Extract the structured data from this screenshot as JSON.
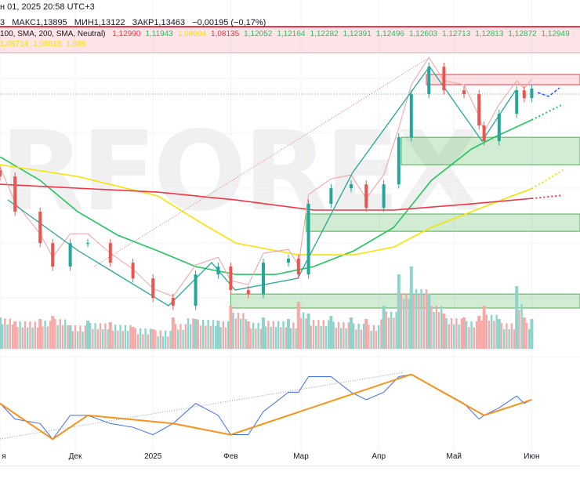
{
  "header": {
    "date_text": "н 01, 2025 20:58 UTC+3",
    "ohlc": {
      "open_fragment": "3",
      "high": "МАКС1,13895",
      "low": "МИН1,13122",
      "close": "ЗАКР1,13463",
      "change": "−0,00195 (−0,17%)"
    }
  },
  "legend": {
    "params": "100, SMA, 200, SMA, Neutral)",
    "values": [
      {
        "text": "1,12990",
        "color": "#f23645"
      },
      {
        "text": "1,11943",
        "color": "#22c55e"
      },
      {
        "text": "1,08604",
        "color": "#f5e300"
      },
      {
        "text": "1,08135",
        "color": "#f23645"
      },
      {
        "text": "1,12052",
        "color": "#22c55e"
      },
      {
        "text": "1,12164",
        "color": "#22c55e"
      },
      {
        "text": "1,12282",
        "color": "#22c55e"
      },
      {
        "text": "1,12391",
        "color": "#22c55e"
      },
      {
        "text": "1,12496",
        "color": "#22c55e"
      },
      {
        "text": "1,12603",
        "color": "#22c55e"
      },
      {
        "text": "1,12713",
        "color": "#22c55e"
      },
      {
        "text": "1,12813",
        "color": "#22c55e"
      },
      {
        "text": "1,12872",
        "color": "#22c55e"
      },
      {
        "text": "1,12949",
        "color": "#22c55e"
      },
      {
        "text": "1,08714",
        "color": "#f5e300"
      },
      {
        "text": "1,08818",
        "color": "#f5e300"
      },
      {
        "text": "1,089",
        "color": "#f5e300"
      }
    ]
  },
  "watermark": "RFOREX",
  "colors": {
    "up": "#26a69a",
    "down": "#ef5350",
    "vol_up": "#8fd3cc",
    "vol_down": "#f7a9a7",
    "sma_fast": "#22c55e",
    "sma_mid": "#f5e300",
    "sma_slow": "#f23645",
    "zigzag": "#f7931a",
    "oscillator": "#3b6cf6",
    "zone_green": "rgba(76,175,80,0.25)",
    "zone_red": "rgba(242,54,69,0.15)"
  },
  "chart_data": {
    "type": "candlestick",
    "x_axis_labels": [
      {
        "date": "2024-11-01",
        "text": "я"
      },
      {
        "date": "2024-12-01",
        "text": "Дек"
      },
      {
        "date": "2025-01-01",
        "text": "2025"
      },
      {
        "date": "2025-02-01",
        "text": "Фев"
      },
      {
        "date": "2025-03-01",
        "text": "Мар"
      },
      {
        "date": "2025-04-01",
        "text": "Апр"
      },
      {
        "date": "2025-05-01",
        "text": "Май"
      },
      {
        "date": "2025-06-01",
        "text": "Июн"
      }
    ],
    "grid": true,
    "price": [
      [
        "2024-11-01",
        1.092
      ],
      [
        "2024-11-07",
        1.0749
      ],
      [
        "2024-11-17",
        1.0597
      ],
      [
        "2024-11-22",
        1.0483
      ],
      [
        "2024-11-29",
        1.0597
      ],
      [
        "2024-12-06",
        1.0597
      ],
      [
        "2024-12-15",
        1.0502
      ],
      [
        "2024-12-24",
        1.0426
      ],
      [
        "2025-01-01",
        1.0331
      ],
      [
        "2025-01-09",
        1.0293
      ],
      [
        "2025-01-18",
        1.0445
      ],
      [
        "2025-01-27",
        1.0483
      ],
      [
        "2025-02-01",
        1.0369
      ],
      [
        "2025-02-08",
        1.035
      ],
      [
        "2025-02-14",
        1.0502
      ],
      [
        "2025-02-24",
        1.0521
      ],
      [
        "2025-02-28",
        1.0445
      ],
      [
        "2025-03-04",
        1.0787
      ],
      [
        "2025-03-13",
        1.0863
      ],
      [
        "2025-03-21",
        1.0882
      ],
      [
        "2025-03-27",
        1.0768
      ],
      [
        "2025-04-03",
        1.0882
      ],
      [
        "2025-04-09",
        1.111
      ],
      [
        "2025-04-14",
        1.1319
      ],
      [
        "2025-04-21",
        1.1452
      ],
      [
        "2025-04-27",
        1.1338
      ],
      [
        "2025-05-05",
        1.1319
      ],
      [
        "2025-05-11",
        1.1167
      ],
      [
        "2025-05-13",
        1.1091
      ],
      [
        "2025-05-19",
        1.1224
      ],
      [
        "2025-05-26",
        1.1338
      ],
      [
        "2025-05-29",
        1.13
      ],
      [
        "2025-06-01",
        1.13463
      ]
    ],
    "volume": [
      40,
      35,
      38,
      42,
      30,
      36,
      34,
      28,
      25,
      40,
      38,
      36,
      55,
      35,
      40,
      38,
      60,
      45,
      42,
      40,
      38,
      55,
      95,
      105,
      70,
      45,
      40,
      42,
      55,
      38,
      80,
      40,
      38
    ],
    "oscillator": [
      53,
      32,
      26,
      5,
      37,
      37,
      26,
      21,
      11,
      26,
      53,
      37,
      11,
      11,
      42,
      68,
      68,
      89,
      89,
      68,
      58,
      68,
      89,
      92,
      79,
      68,
      53,
      32,
      37,
      47,
      63,
      53,
      58
    ],
    "sma_fast": [
      [
        "2024-11-01",
        1.1015
      ],
      [
        "2024-11-17",
        1.0901
      ],
      [
        "2024-12-02",
        1.0749
      ],
      [
        "2024-12-18",
        1.0635
      ],
      [
        "2025-01-03",
        1.0559
      ],
      [
        "2025-01-18",
        1.0483
      ],
      [
        "2025-02-03",
        1.0445
      ],
      [
        "2025-02-19",
        1.0445
      ],
      [
        "2025-03-06",
        1.0483
      ],
      [
        "2025-03-22",
        1.0559
      ],
      [
        "2025-04-07",
        1.0673
      ],
      [
        "2025-04-22",
        1.0901
      ],
      [
        "2025-05-08",
        1.1053
      ],
      [
        "2025-05-17",
        1.111
      ],
      [
        "2025-06-01",
        1.1194
      ]
    ],
    "sma_mid": [
      [
        "2024-11-01",
        1.0977
      ],
      [
        "2024-12-02",
        1.092
      ],
      [
        "2025-01-03",
        1.0825
      ],
      [
        "2025-01-18",
        1.0711
      ],
      [
        "2025-02-03",
        1.0597
      ],
      [
        "2025-02-28",
        1.054
      ],
      [
        "2025-03-22",
        1.054
      ],
      [
        "2025-04-07",
        1.0578
      ],
      [
        "2025-04-22",
        1.0673
      ],
      [
        "2025-05-08",
        1.0749
      ],
      [
        "2025-05-24",
        1.0825
      ],
      [
        "2025-06-01",
        1.08604
      ]
    ],
    "sma_slow": [
      [
        "2024-11-01",
        1.0882
      ],
      [
        "2024-12-02",
        1.0863
      ],
      [
        "2025-01-03",
        1.0844
      ],
      [
        "2025-02-03",
        1.0806
      ],
      [
        "2025-03-06",
        1.0757
      ],
      [
        "2025-04-07",
        1.0757
      ],
      [
        "2025-05-08",
        1.0787
      ],
      [
        "2025-06-01",
        1.08135
      ]
    ],
    "zones": [
      {
        "from": "2025-04-20",
        "top": 1.1414,
        "bottom": 1.1365,
        "kind": "red"
      },
      {
        "from": "2025-04-10",
        "top": 1.111,
        "bottom": 1.0977,
        "kind": "green"
      },
      {
        "from": "2025-03-03",
        "top": 1.0738,
        "bottom": 1.0654,
        "kind": "green"
      },
      {
        "from": "2025-02-01",
        "top": 1.035,
        "bottom": 1.0282,
        "kind": "green"
      }
    ]
  }
}
